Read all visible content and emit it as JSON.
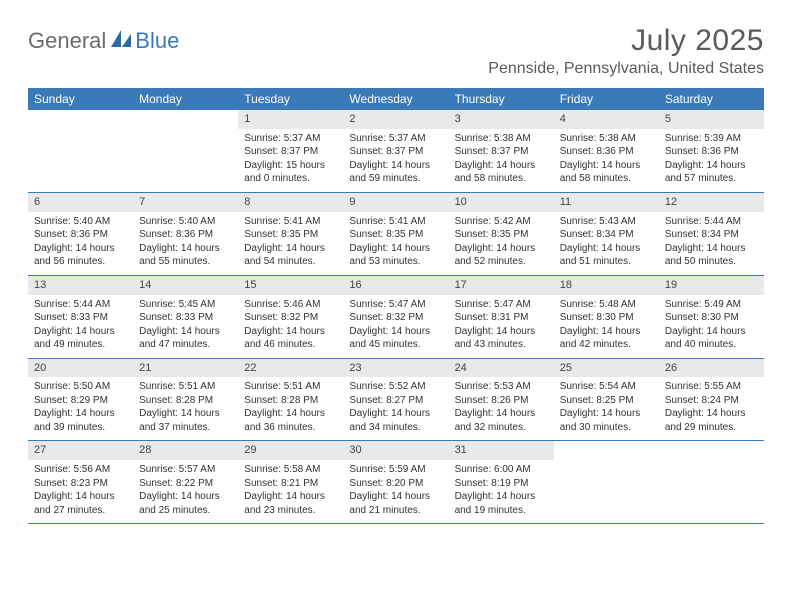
{
  "logo": {
    "part1": "General",
    "part2": "Blue"
  },
  "title": "July 2025",
  "location": "Pennside, Pennsylvania, United States",
  "colors": {
    "header_bg": "#3a7ab8",
    "date_bar_bg": "#e9e9e9",
    "text": "#333333",
    "logo_gray": "#6b6b6b",
    "logo_blue": "#3a7ab8"
  },
  "day_names": [
    "Sunday",
    "Monday",
    "Tuesday",
    "Wednesday",
    "Thursday",
    "Friday",
    "Saturday"
  ],
  "weeks": [
    [
      null,
      null,
      {
        "n": "1",
        "sr": "5:37 AM",
        "ss": "8:37 PM",
        "dl": "15 hours and 0 minutes."
      },
      {
        "n": "2",
        "sr": "5:37 AM",
        "ss": "8:37 PM",
        "dl": "14 hours and 59 minutes."
      },
      {
        "n": "3",
        "sr": "5:38 AM",
        "ss": "8:37 PM",
        "dl": "14 hours and 58 minutes."
      },
      {
        "n": "4",
        "sr": "5:38 AM",
        "ss": "8:36 PM",
        "dl": "14 hours and 58 minutes."
      },
      {
        "n": "5",
        "sr": "5:39 AM",
        "ss": "8:36 PM",
        "dl": "14 hours and 57 minutes."
      }
    ],
    [
      {
        "n": "6",
        "sr": "5:40 AM",
        "ss": "8:36 PM",
        "dl": "14 hours and 56 minutes."
      },
      {
        "n": "7",
        "sr": "5:40 AM",
        "ss": "8:36 PM",
        "dl": "14 hours and 55 minutes."
      },
      {
        "n": "8",
        "sr": "5:41 AM",
        "ss": "8:35 PM",
        "dl": "14 hours and 54 minutes."
      },
      {
        "n": "9",
        "sr": "5:41 AM",
        "ss": "8:35 PM",
        "dl": "14 hours and 53 minutes."
      },
      {
        "n": "10",
        "sr": "5:42 AM",
        "ss": "8:35 PM",
        "dl": "14 hours and 52 minutes."
      },
      {
        "n": "11",
        "sr": "5:43 AM",
        "ss": "8:34 PM",
        "dl": "14 hours and 51 minutes."
      },
      {
        "n": "12",
        "sr": "5:44 AM",
        "ss": "8:34 PM",
        "dl": "14 hours and 50 minutes."
      }
    ],
    [
      {
        "n": "13",
        "sr": "5:44 AM",
        "ss": "8:33 PM",
        "dl": "14 hours and 49 minutes."
      },
      {
        "n": "14",
        "sr": "5:45 AM",
        "ss": "8:33 PM",
        "dl": "14 hours and 47 minutes."
      },
      {
        "n": "15",
        "sr": "5:46 AM",
        "ss": "8:32 PM",
        "dl": "14 hours and 46 minutes."
      },
      {
        "n": "16",
        "sr": "5:47 AM",
        "ss": "8:32 PM",
        "dl": "14 hours and 45 minutes."
      },
      {
        "n": "17",
        "sr": "5:47 AM",
        "ss": "8:31 PM",
        "dl": "14 hours and 43 minutes."
      },
      {
        "n": "18",
        "sr": "5:48 AM",
        "ss": "8:30 PM",
        "dl": "14 hours and 42 minutes."
      },
      {
        "n": "19",
        "sr": "5:49 AM",
        "ss": "8:30 PM",
        "dl": "14 hours and 40 minutes."
      }
    ],
    [
      {
        "n": "20",
        "sr": "5:50 AM",
        "ss": "8:29 PM",
        "dl": "14 hours and 39 minutes."
      },
      {
        "n": "21",
        "sr": "5:51 AM",
        "ss": "8:28 PM",
        "dl": "14 hours and 37 minutes."
      },
      {
        "n": "22",
        "sr": "5:51 AM",
        "ss": "8:28 PM",
        "dl": "14 hours and 36 minutes."
      },
      {
        "n": "23",
        "sr": "5:52 AM",
        "ss": "8:27 PM",
        "dl": "14 hours and 34 minutes."
      },
      {
        "n": "24",
        "sr": "5:53 AM",
        "ss": "8:26 PM",
        "dl": "14 hours and 32 minutes."
      },
      {
        "n": "25",
        "sr": "5:54 AM",
        "ss": "8:25 PM",
        "dl": "14 hours and 30 minutes."
      },
      {
        "n": "26",
        "sr": "5:55 AM",
        "ss": "8:24 PM",
        "dl": "14 hours and 29 minutes."
      }
    ],
    [
      {
        "n": "27",
        "sr": "5:56 AM",
        "ss": "8:23 PM",
        "dl": "14 hours and 27 minutes."
      },
      {
        "n": "28",
        "sr": "5:57 AM",
        "ss": "8:22 PM",
        "dl": "14 hours and 25 minutes."
      },
      {
        "n": "29",
        "sr": "5:58 AM",
        "ss": "8:21 PM",
        "dl": "14 hours and 23 minutes."
      },
      {
        "n": "30",
        "sr": "5:59 AM",
        "ss": "8:20 PM",
        "dl": "14 hours and 21 minutes."
      },
      {
        "n": "31",
        "sr": "6:00 AM",
        "ss": "8:19 PM",
        "dl": "14 hours and 19 minutes."
      },
      null,
      null
    ]
  ],
  "labels": {
    "sunrise": "Sunrise:",
    "sunset": "Sunset:",
    "daylight": "Daylight:"
  }
}
